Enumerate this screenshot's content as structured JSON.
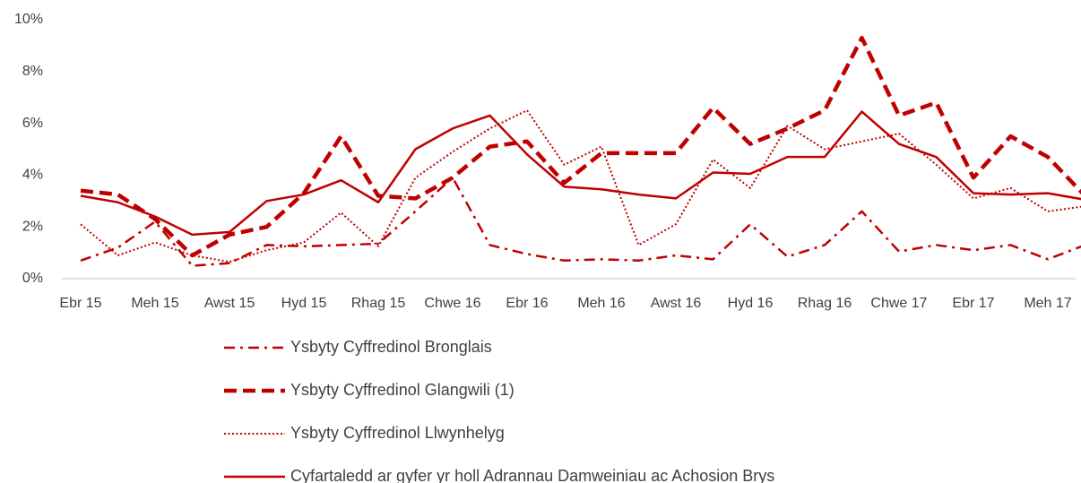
{
  "chart_data": {
    "type": "line",
    "categories": [
      "Ebr 15",
      null,
      "Meh 15",
      null,
      "Awst 15",
      null,
      "Hyd 15",
      null,
      "Rhag 15",
      null,
      "Chwe 16",
      null,
      "Ebr 16",
      null,
      "Meh 16",
      null,
      "Awst 16",
      null,
      "Hyd 16",
      null,
      "Rhag 16",
      null,
      "Chwe 17",
      null,
      "Ebr 17",
      null,
      "Meh 17",
      null
    ],
    "ylim": [
      0,
      10
    ],
    "yticks": [
      {
        "value": 0,
        "label": "0%"
      },
      {
        "value": 2,
        "label": "2%"
      },
      {
        "value": 4,
        "label": "4%"
      },
      {
        "value": 6,
        "label": "6%"
      },
      {
        "value": 8,
        "label": "8%"
      },
      {
        "value": 10,
        "label": "10%"
      }
    ],
    "grid": false,
    "legend": "bottom",
    "series": [
      {
        "name": "Ysbyty Cyffredinol Bronglais",
        "color": "#c00000",
        "line_style": "dash-dot",
        "values": [
          0.7,
          1.2,
          2.2,
          0.5,
          0.6,
          1.3,
          1.25,
          1.3,
          1.35,
          2.6,
          3.9,
          1.3,
          0.95,
          0.7,
          0.75,
          0.7,
          0.9,
          0.75,
          2.1,
          0.85,
          1.3,
          2.6,
          1.05,
          1.3,
          1.1,
          1.3,
          0.75,
          1.3
        ]
      },
      {
        "name": "Ysbyty Cyffredinol Glangwili (1)",
        "color": "#c00000",
        "line_style": "dash",
        "values": [
          3.4,
          3.25,
          2.3,
          0.9,
          1.7,
          2.0,
          3.3,
          5.5,
          3.2,
          3.1,
          3.9,
          5.1,
          5.3,
          3.7,
          4.85,
          4.85,
          4.85,
          6.6,
          5.2,
          5.8,
          6.5,
          9.3,
          6.3,
          6.8,
          3.9,
          5.5,
          4.7,
          3.2
        ]
      },
      {
        "name": "Ysbyty Cyffredinol Llwynhelyg",
        "color": "#c00000",
        "line_style": "dot",
        "values": [
          2.1,
          0.9,
          1.4,
          0.9,
          0.65,
          1.1,
          1.4,
          2.55,
          1.25,
          3.9,
          4.9,
          5.8,
          6.5,
          4.4,
          5.1,
          1.3,
          2.1,
          4.6,
          3.5,
          5.9,
          5.0,
          5.3,
          5.6,
          4.4,
          3.1,
          3.5,
          2.6,
          2.8
        ]
      },
      {
        "name": "Cyfartaledd ar gyfer yr holl Adrannau Damweiniau ac Achosion Brys",
        "color": "#c00000",
        "line_style": "solid",
        "values": [
          3.2,
          2.95,
          2.4,
          1.7,
          1.8,
          3.0,
          3.25,
          3.8,
          2.95,
          5.0,
          5.8,
          6.3,
          4.8,
          3.55,
          3.45,
          3.25,
          3.1,
          4.1,
          4.05,
          4.7,
          4.7,
          6.45,
          5.2,
          4.7,
          3.3,
          3.25,
          3.3,
          3.05
        ]
      }
    ]
  }
}
